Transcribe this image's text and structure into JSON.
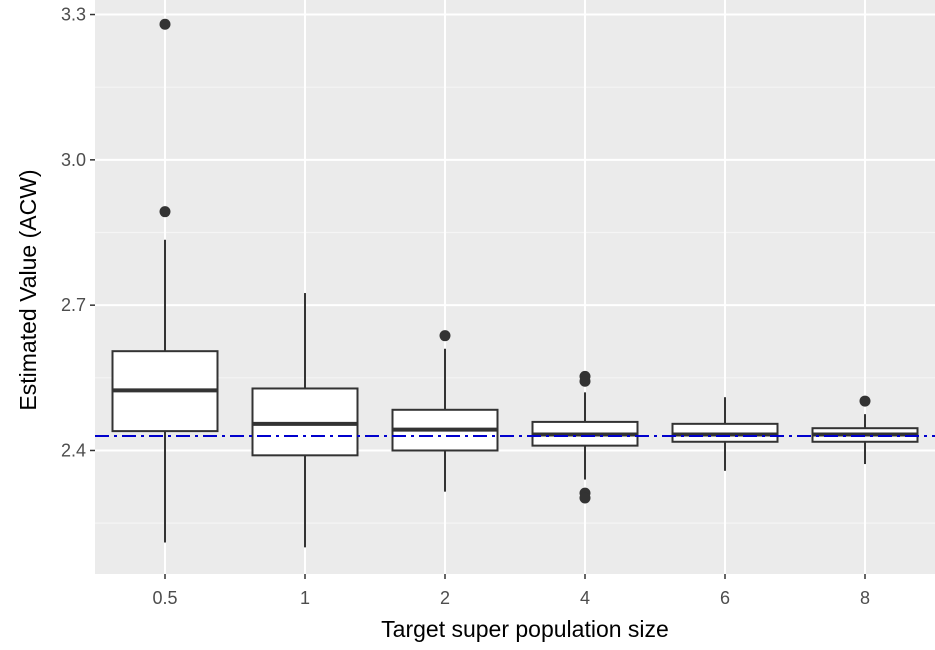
{
  "chart_data": {
    "type": "box",
    "xlabel": "Target super population size",
    "ylabel": "Estimated Value (ACW)",
    "ylim": [
      2.145,
      3.33
    ],
    "yticks": [
      2.4,
      2.7,
      3.0,
      3.3
    ],
    "yticklabels": [
      "2.4",
      "2.7",
      "3.0",
      "3.3"
    ],
    "categories": [
      "0.5",
      "1",
      "2",
      "4",
      "6",
      "8"
    ],
    "boxes": [
      {
        "category": "0.5",
        "whisker_low": 2.21,
        "q1": 2.44,
        "median": 2.524,
        "q3": 2.605,
        "whisker_high": 2.835,
        "outliers": [
          2.893,
          3.28
        ]
      },
      {
        "category": "1",
        "whisker_low": 2.2,
        "q1": 2.39,
        "median": 2.455,
        "q3": 2.528,
        "whisker_high": 2.725,
        "outliers": []
      },
      {
        "category": "2",
        "whisker_low": 2.315,
        "q1": 2.4,
        "median": 2.443,
        "q3": 2.484,
        "whisker_high": 2.61,
        "outliers": [
          2.637
        ]
      },
      {
        "category": "4",
        "whisker_low": 2.34,
        "q1": 2.41,
        "median": 2.433,
        "q3": 2.459,
        "whisker_high": 2.52,
        "outliers": [
          2.553,
          2.543,
          2.312,
          2.302
        ]
      },
      {
        "category": "6",
        "whisker_low": 2.358,
        "q1": 2.418,
        "median": 2.433,
        "q3": 2.455,
        "whisker_high": 2.51,
        "outliers": []
      },
      {
        "category": "8",
        "whisker_low": 2.372,
        "q1": 2.418,
        "median": 2.433,
        "q3": 2.446,
        "whisker_high": 2.475,
        "outliers": [
          2.502
        ]
      }
    ],
    "reference_line": {
      "y": 2.43,
      "style": "dashdot",
      "color": "#0000cd"
    },
    "colors": {
      "panel": "#ebebeb",
      "grid_major": "#ffffff",
      "box_fill": "#ffffff",
      "box_stroke": "#333333",
      "outlier": "#333333"
    },
    "grid": true,
    "legend": "none"
  }
}
